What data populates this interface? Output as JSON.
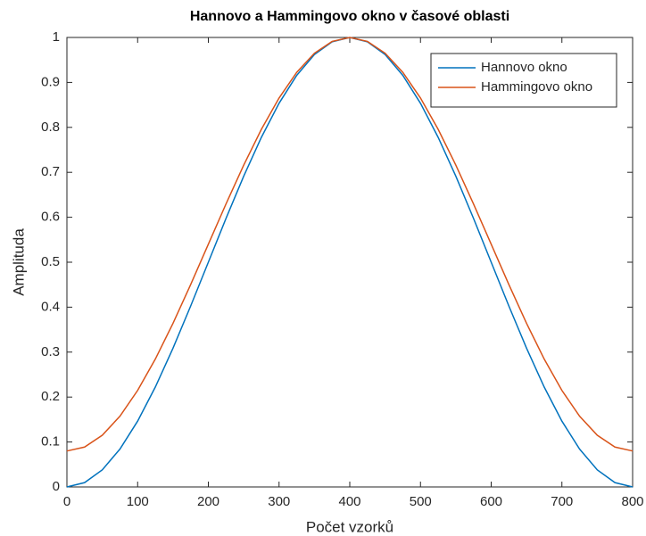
{
  "chart_data": {
    "type": "line",
    "title": "Hannovo a Hammingovo okno v časové oblasti",
    "xlabel": "Počet vzorků",
    "ylabel": "Amplituda",
    "x": [
      0,
      25,
      50,
      75,
      100,
      125,
      150,
      175,
      200,
      225,
      250,
      275,
      300,
      325,
      350,
      375,
      400,
      425,
      450,
      475,
      500,
      525,
      550,
      575,
      600,
      625,
      650,
      675,
      700,
      725,
      750,
      775,
      800
    ],
    "series": [
      {
        "name": "Hannovo okno",
        "color": "#0072bd",
        "values": [
          0,
          0.0096,
          0.0381,
          0.0843,
          0.1464,
          0.2222,
          0.3087,
          0.4025,
          0.5,
          0.5975,
          0.6913,
          0.7778,
          0.8536,
          0.9157,
          0.9619,
          0.9904,
          1,
          0.9904,
          0.9619,
          0.9157,
          0.8536,
          0.7778,
          0.6913,
          0.5975,
          0.5,
          0.4025,
          0.3087,
          0.2222,
          0.1464,
          0.0843,
          0.0381,
          0.0096,
          0
        ]
      },
      {
        "name": "Hammingovo okno",
        "color": "#d95319",
        "values": [
          0.08,
          0.0888,
          0.115,
          0.1575,
          0.2147,
          0.2844,
          0.364,
          0.4503,
          0.54,
          0.6297,
          0.716,
          0.7956,
          0.8653,
          0.9225,
          0.965,
          0.9912,
          1,
          0.9912,
          0.965,
          0.9225,
          0.8653,
          0.7956,
          0.716,
          0.6297,
          0.54,
          0.4503,
          0.364,
          0.2844,
          0.2147,
          0.1575,
          0.115,
          0.0888,
          0.08
        ]
      }
    ],
    "xlim": [
      0,
      800
    ],
    "xticks": [
      0,
      100,
      200,
      300,
      400,
      500,
      600,
      700,
      800
    ],
    "ylim": [
      0,
      1
    ],
    "yticks": [
      0,
      0.1,
      0.2,
      0.3,
      0.4,
      0.5,
      0.6,
      0.7,
      0.8,
      0.9,
      1
    ],
    "grid": false,
    "legend": "top-right"
  }
}
